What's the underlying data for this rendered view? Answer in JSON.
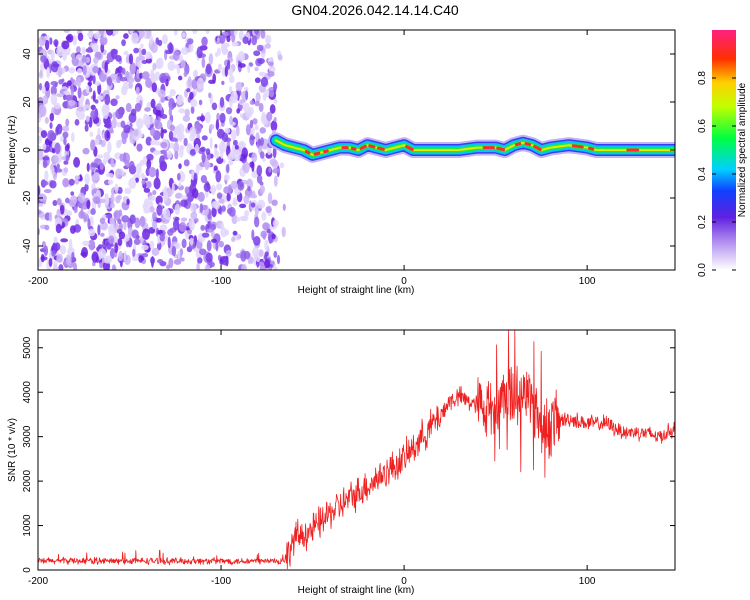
{
  "title": "GN04.2026.042.14.14.C40",
  "chart_data": [
    {
      "type": "heatmap",
      "xlabel": "Height of straight line (km)",
      "ylabel": "Frequency (Hz)",
      "xlim": [
        -200,
        148
      ],
      "ylim": [
        -50,
        50
      ],
      "xticks": [
        -200,
        -100,
        0,
        100
      ],
      "yticks": [
        -40,
        -20,
        0,
        20,
        40
      ],
      "noise_region_x": [
        -200,
        -70
      ],
      "signal_track": {
        "x": [
          -70,
          -65,
          -60,
          -55,
          -50,
          -45,
          -40,
          -35,
          -30,
          -25,
          -20,
          -15,
          -10,
          -5,
          0,
          5,
          10,
          20,
          30,
          40,
          50,
          55,
          60,
          65,
          70,
          75,
          80,
          90,
          100,
          105,
          110,
          120,
          130,
          140,
          148
        ],
        "y": [
          4,
          2,
          1,
          0,
          -2,
          -1,
          0,
          1,
          1,
          0,
          2,
          1,
          0,
          1,
          2,
          0,
          0,
          0,
          0,
          1,
          1,
          0,
          2,
          3,
          2,
          0,
          1,
          2,
          1,
          0,
          0,
          0,
          0,
          0,
          0
        ]
      },
      "colorbar": {
        "label": "Normalized spectral amplitude",
        "ticks": [
          "0.0",
          "0.2",
          "0.4",
          "0.6",
          "0.8"
        ],
        "range": [
          0,
          1
        ]
      }
    },
    {
      "type": "line",
      "xlabel": "Height of straight line (km)",
      "ylabel": "SNR (10 * v/v)",
      "xlim": [
        -200,
        148
      ],
      "ylim": [
        0,
        5400
      ],
      "xticks": [
        -200,
        -100,
        0,
        100
      ],
      "yticks": [
        0,
        1000,
        2000,
        3000,
        4000,
        5000
      ],
      "series": [
        {
          "name": "SNR",
          "color": "#ee2020",
          "x": [
            -200,
            -180,
            -160,
            -140,
            -120,
            -100,
            -80,
            -65,
            -60,
            -50,
            -40,
            -30,
            -20,
            -10,
            0,
            10,
            20,
            25,
            30,
            40,
            50,
            55,
            60,
            65,
            70,
            75,
            80,
            90,
            100,
            110,
            120,
            130,
            140,
            148
          ],
          "values": [
            200,
            210,
            200,
            205,
            200,
            200,
            200,
            200,
            700,
            900,
            1300,
            1600,
            1900,
            2200,
            2500,
            3000,
            3500,
            3800,
            3900,
            3700,
            3600,
            4000,
            3900,
            4100,
            3800,
            3300,
            3300,
            3400,
            3300,
            3300,
            3100,
            3100,
            3000,
            3200
          ]
        }
      ]
    }
  ]
}
